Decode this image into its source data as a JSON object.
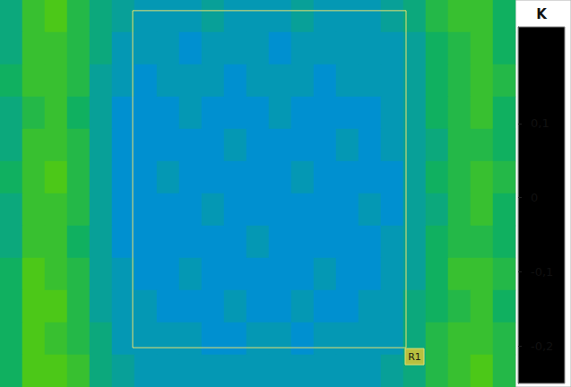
{
  "chart_data": {
    "type": "heatmap",
    "tick_labels": false,
    "cells": [
      [
        -0.02,
        0.01,
        0.02,
        0.0,
        -0.02,
        -0.03,
        -0.04,
        -0.04,
        -0.04,
        -0.03,
        -0.04,
        -0.04,
        -0.04,
        -0.03,
        -0.04,
        -0.04,
        -0.04,
        -0.03,
        -0.02,
        0.0,
        0.01,
        0.01,
        -0.01
      ],
      [
        -0.02,
        0.01,
        0.01,
        0.0,
        -0.02,
        -0.04,
        -0.04,
        -0.04,
        -0.05,
        -0.04,
        -0.04,
        -0.04,
        -0.05,
        -0.04,
        -0.04,
        -0.04,
        -0.04,
        -0.04,
        -0.03,
        -0.01,
        0.0,
        0.01,
        -0.01
      ],
      [
        -0.01,
        0.01,
        0.01,
        0.0,
        -0.03,
        -0.04,
        -0.05,
        -0.04,
        -0.04,
        -0.04,
        -0.05,
        -0.04,
        -0.04,
        -0.04,
        -0.05,
        -0.04,
        -0.04,
        -0.04,
        -0.03,
        -0.01,
        0.0,
        0.01,
        0.0
      ],
      [
        -0.02,
        0.0,
        0.01,
        -0.01,
        -0.03,
        -0.05,
        -0.05,
        -0.05,
        -0.04,
        -0.05,
        -0.05,
        -0.05,
        -0.04,
        -0.05,
        -0.05,
        -0.05,
        -0.05,
        -0.04,
        -0.03,
        -0.01,
        0.0,
        0.01,
        -0.01
      ],
      [
        -0.02,
        0.01,
        0.01,
        0.0,
        -0.03,
        -0.05,
        -0.05,
        -0.05,
        -0.05,
        -0.05,
        -0.04,
        -0.05,
        -0.05,
        -0.05,
        -0.05,
        -0.04,
        -0.05,
        -0.04,
        -0.03,
        -0.02,
        0.0,
        0.0,
        -0.01
      ],
      [
        -0.01,
        0.01,
        0.02,
        0.0,
        -0.03,
        -0.05,
        -0.05,
        -0.04,
        -0.05,
        -0.05,
        -0.05,
        -0.05,
        -0.05,
        -0.04,
        -0.05,
        -0.05,
        -0.05,
        -0.05,
        -0.03,
        -0.01,
        0.0,
        0.01,
        0.0
      ],
      [
        -0.02,
        0.01,
        0.01,
        0.0,
        -0.03,
        -0.05,
        -0.05,
        -0.05,
        -0.05,
        -0.04,
        -0.05,
        -0.05,
        -0.05,
        -0.05,
        -0.05,
        -0.05,
        -0.04,
        -0.05,
        -0.03,
        -0.02,
        0.0,
        0.01,
        -0.01
      ],
      [
        -0.02,
        0.01,
        0.01,
        -0.01,
        -0.03,
        -0.05,
        -0.05,
        -0.05,
        -0.05,
        -0.05,
        -0.05,
        -0.04,
        -0.05,
        -0.05,
        -0.05,
        -0.05,
        -0.05,
        -0.04,
        -0.03,
        -0.01,
        0.0,
        0.0,
        -0.01
      ],
      [
        -0.01,
        0.02,
        0.01,
        0.0,
        -0.03,
        -0.04,
        -0.05,
        -0.05,
        -0.04,
        -0.05,
        -0.05,
        -0.05,
        -0.05,
        -0.05,
        -0.04,
        -0.05,
        -0.05,
        -0.04,
        -0.03,
        -0.01,
        0.01,
        0.01,
        0.0
      ],
      [
        -0.01,
        0.02,
        0.02,
        0.0,
        -0.03,
        -0.04,
        -0.04,
        -0.05,
        -0.05,
        -0.05,
        -0.04,
        -0.05,
        -0.05,
        -0.04,
        -0.05,
        -0.05,
        -0.04,
        -0.04,
        -0.02,
        -0.01,
        0.0,
        0.01,
        -0.01
      ],
      [
        -0.01,
        0.02,
        0.01,
        0.0,
        -0.02,
        -0.04,
        -0.04,
        -0.04,
        -0.04,
        -0.05,
        -0.05,
        -0.04,
        -0.04,
        -0.05,
        -0.04,
        -0.04,
        -0.04,
        -0.04,
        -0.02,
        0.0,
        0.01,
        0.01,
        0.0
      ],
      [
        -0.01,
        0.02,
        0.02,
        0.01,
        -0.02,
        -0.03,
        -0.04,
        -0.04,
        -0.04,
        -0.04,
        -0.04,
        -0.04,
        -0.04,
        -0.04,
        -0.04,
        -0.04,
        -0.04,
        -0.03,
        -0.02,
        0.0,
        0.01,
        0.02,
        0.0
      ]
    ],
    "colorbar": {
      "title": "K",
      "range": [
        -0.25,
        0.23
      ],
      "ticks": [
        {
          "value": -0.2,
          "label": "-0,2"
        },
        {
          "value": -0.1,
          "label": "-0,1"
        },
        0,
        {
          "value": 0.1,
          "label": "0,1"
        }
      ]
    },
    "roi": {
      "label": "R1",
      "x": [
        5.92,
        18.12
      ],
      "y": [
        0.33,
        10.78
      ]
    }
  }
}
